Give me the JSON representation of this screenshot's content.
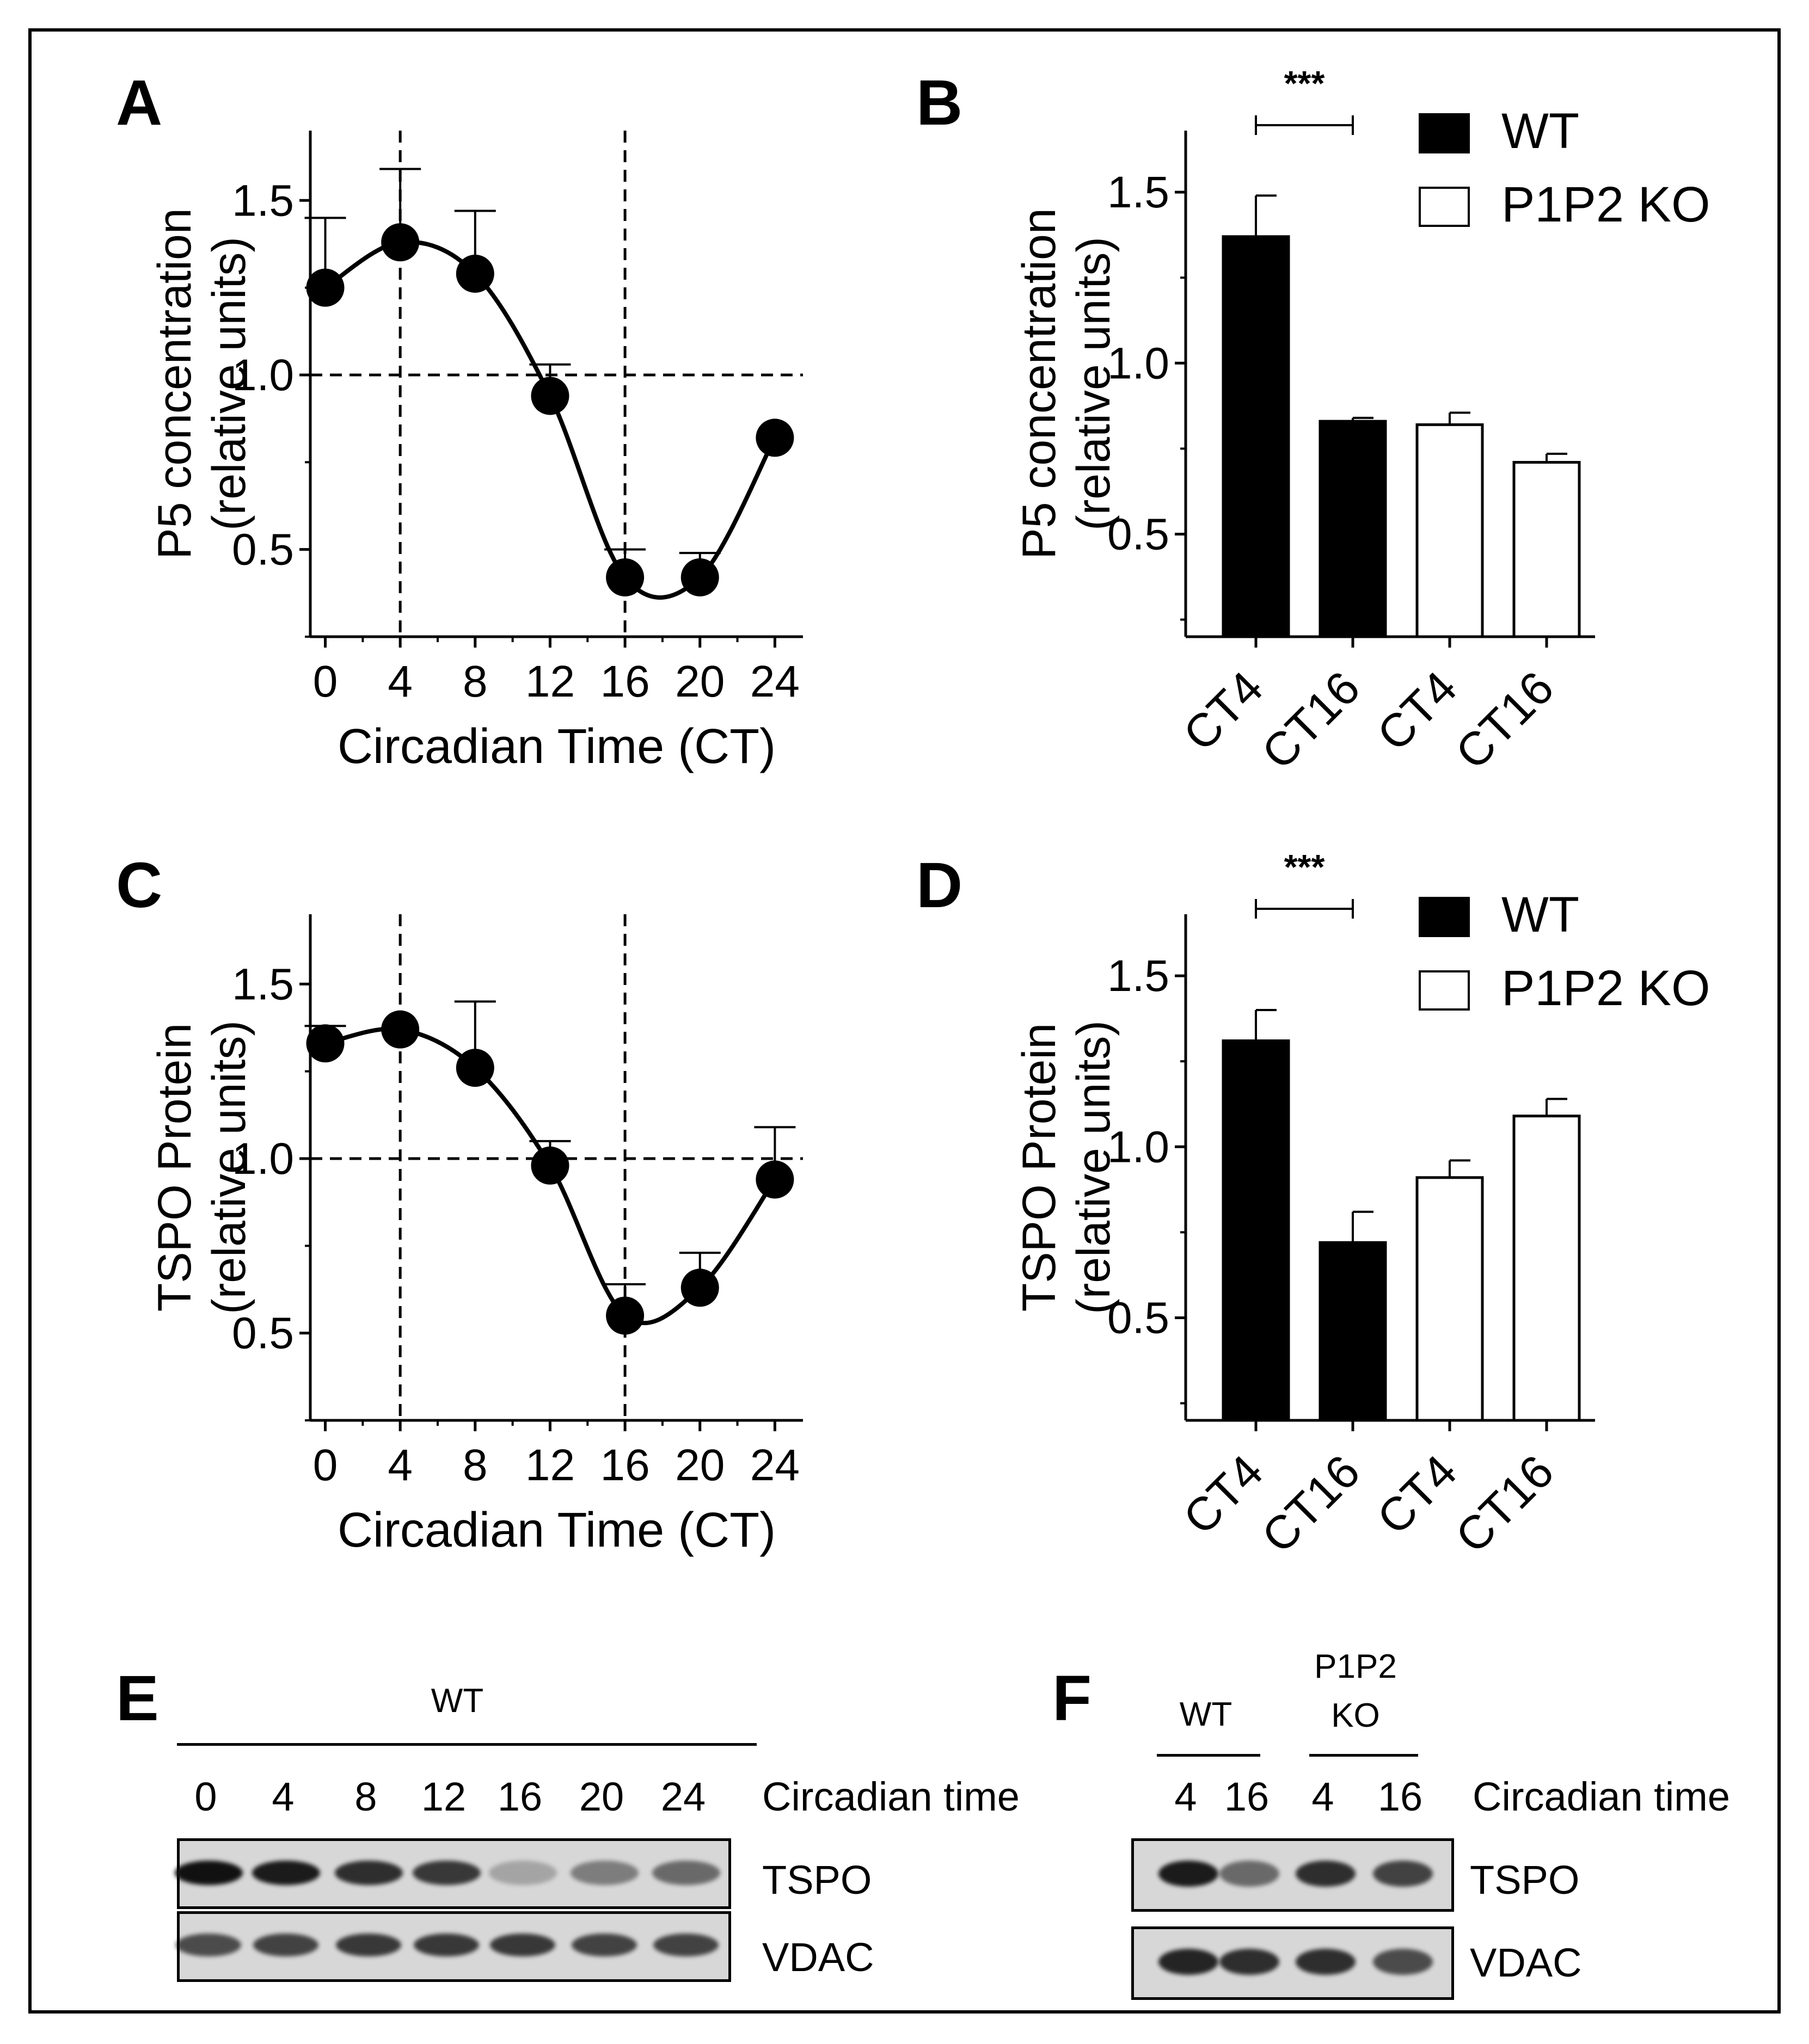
{
  "panels": {
    "A": "A",
    "B": "B",
    "C": "C",
    "D": "D",
    "E": "E",
    "F": "F"
  },
  "chart_data": [
    {
      "id": "A",
      "type": "scatter",
      "title": "",
      "xlabel": "Circadian Time (CT)",
      "ylabel_line1": "P5 concentration",
      "ylabel_line2": "(relative units)",
      "xticks": [
        0,
        4,
        8,
        12,
        16,
        20,
        24
      ],
      "yticks": [
        0.5,
        1.0,
        1.5
      ],
      "ytick_labels": [
        "0.5",
        "1.0",
        "1.5"
      ],
      "xlim": [
        -0.8,
        25.5
      ],
      "ylim": [
        0.25,
        1.7
      ],
      "x": [
        0,
        4,
        8,
        12,
        16,
        20,
        24
      ],
      "y": [
        1.25,
        1.38,
        1.29,
        0.94,
        0.42,
        0.42,
        0.82
      ],
      "error": [
        0.2,
        0.21,
        0.18,
        0.09,
        0.08,
        0.07,
        0.0
      ],
      "fit_curve": true,
      "ref_hline": 1.0,
      "ref_vlines": [
        4,
        16
      ]
    },
    {
      "id": "B",
      "type": "bar",
      "title": "",
      "ylabel_line1": "P5 concentration",
      "ylabel_line2": "(relative units)",
      "categories": [
        "CT4",
        "CT16",
        "CT4",
        "CT16"
      ],
      "values": [
        1.37,
        0.83,
        0.82,
        0.71
      ],
      "error": [
        0.12,
        0.01,
        0.035,
        0.025
      ],
      "groups": [
        "WT",
        "WT",
        "P1P2 KO",
        "P1P2 KO"
      ],
      "yticks": [
        0.5,
        1.0,
        1.5
      ],
      "ytick_labels": [
        "0.5",
        "1.0",
        "1.5"
      ],
      "ylim": [
        0.2,
        1.68
      ],
      "legend": [
        "WT",
        "P1P2 KO"
      ],
      "significance": "***"
    },
    {
      "id": "C",
      "type": "scatter",
      "title": "",
      "xlabel": "Circadian Time (CT)",
      "ylabel_line1": "TSPO Protein",
      "ylabel_line2": "(relative units)",
      "xticks": [
        0,
        4,
        8,
        12,
        16,
        20,
        24
      ],
      "yticks": [
        0.5,
        1.0,
        1.5
      ],
      "ytick_labels": [
        "0.5",
        "1.0",
        "1.5"
      ],
      "xlim": [
        -0.8,
        25.5
      ],
      "ylim": [
        0.25,
        1.7
      ],
      "x": [
        0,
        4,
        8,
        12,
        16,
        20,
        24
      ],
      "y": [
        1.33,
        1.37,
        1.26,
        0.98,
        0.55,
        0.63,
        0.94
      ],
      "error": [
        0.05,
        0.0,
        0.19,
        0.07,
        0.09,
        0.1,
        0.15
      ],
      "fit_curve": true,
      "ref_hline": 1.0,
      "ref_vlines": [
        4,
        16
      ]
    },
    {
      "id": "D",
      "type": "bar",
      "title": "",
      "ylabel_line1": "TSPO Protein",
      "ylabel_line2": "(relative units)",
      "categories": [
        "CT4",
        "CT16",
        "CT4",
        "CT16"
      ],
      "values": [
        1.31,
        0.72,
        0.91,
        1.09
      ],
      "error": [
        0.09,
        0.09,
        0.05,
        0.05
      ],
      "groups": [
        "WT",
        "WT",
        "P1P2 KO",
        "P1P2 KO"
      ],
      "yticks": [
        0.5,
        1.0,
        1.5
      ],
      "ytick_labels": [
        "0.5",
        "1.0",
        "1.5"
      ],
      "ylim": [
        0.2,
        1.68
      ],
      "legend": [
        "WT",
        "P1P2 KO"
      ],
      "significance": "***"
    }
  ],
  "blot_e": {
    "group": "WT",
    "times": [
      "0",
      "4",
      "8",
      "12",
      "16",
      "20",
      "24"
    ],
    "time_label": "Circadian time",
    "row1": "TSPO",
    "row2": "VDAC",
    "tspo_intensity": [
      1.0,
      0.95,
      0.85,
      0.8,
      0.25,
      0.45,
      0.55
    ],
    "vdac_intensity": [
      0.7,
      0.75,
      0.8,
      0.8,
      0.8,
      0.75,
      0.75
    ]
  },
  "blot_f": {
    "group1": "WT",
    "group2_line1": "P1P2",
    "group2_line2": "KO",
    "times": [
      "4",
      "16",
      "4",
      "16"
    ],
    "time_label": "Circadian time",
    "row1": "TSPO",
    "row2": "VDAC",
    "tspo_intensity": [
      0.95,
      0.55,
      0.85,
      0.75
    ],
    "vdac_intensity": [
      0.9,
      0.85,
      0.85,
      0.7
    ]
  },
  "colors": {
    "ink": "#000000",
    "bar_wt": "#000000",
    "bar_ko": "#ffffff",
    "blot_bg": "#d7d7d7",
    "band": "#111111"
  }
}
